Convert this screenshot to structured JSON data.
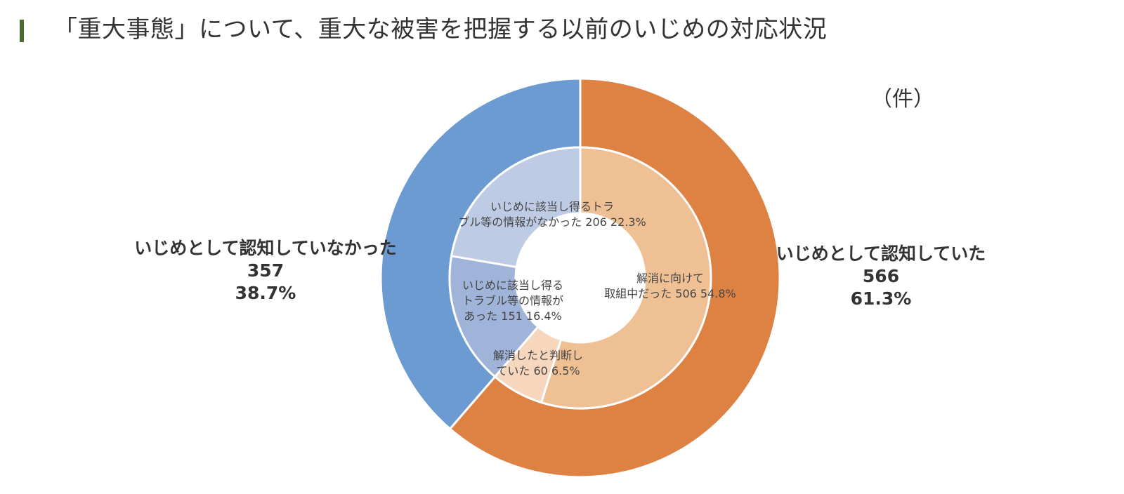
{
  "title": "「重大事態」について、重大な被害を把握する以前のいじめの対応状況",
  "unit_label": "（件）",
  "chart_data": {
    "type": "pie",
    "variant": "nested-donut",
    "title": "「重大事態」について、重大な被害を把握する以前のいじめの対応状況",
    "unit": "（件）",
    "outer": [
      {
        "name": "いじめとして認知していた",
        "value": 566,
        "percent": "61.3%",
        "color": "#de8244"
      },
      {
        "name": "いじめとして認知していなかった",
        "value": 357,
        "percent": "38.7%",
        "color": "#6b9bd1"
      }
    ],
    "inner": [
      {
        "name_lines": [
          "解消に向けて",
          "取組中だった"
        ],
        "value": 506,
        "percent": "54.8%",
        "color": "#f0c095",
        "group": "いじめとして認知していた"
      },
      {
        "name_lines": [
          "解消したと判断し",
          "ていた"
        ],
        "value": 60,
        "percent": "6.5%",
        "color": "#f6d6bc",
        "group": "いじめとして認知していた"
      },
      {
        "name_lines": [
          "いじめに該当し得る",
          "トラブル等の情報が",
          "あった"
        ],
        "value": 151,
        "percent": "16.4%",
        "color": "#9fb4d8",
        "group": "いじめとして認知していなかった"
      },
      {
        "name_lines": [
          "いじめに該当し得るトラ",
          "ブル等の情報がなかった"
        ],
        "value": 206,
        "percent": "22.3%",
        "color": "#bdcbe4",
        "group": "いじめとして認知していなかった"
      }
    ]
  }
}
